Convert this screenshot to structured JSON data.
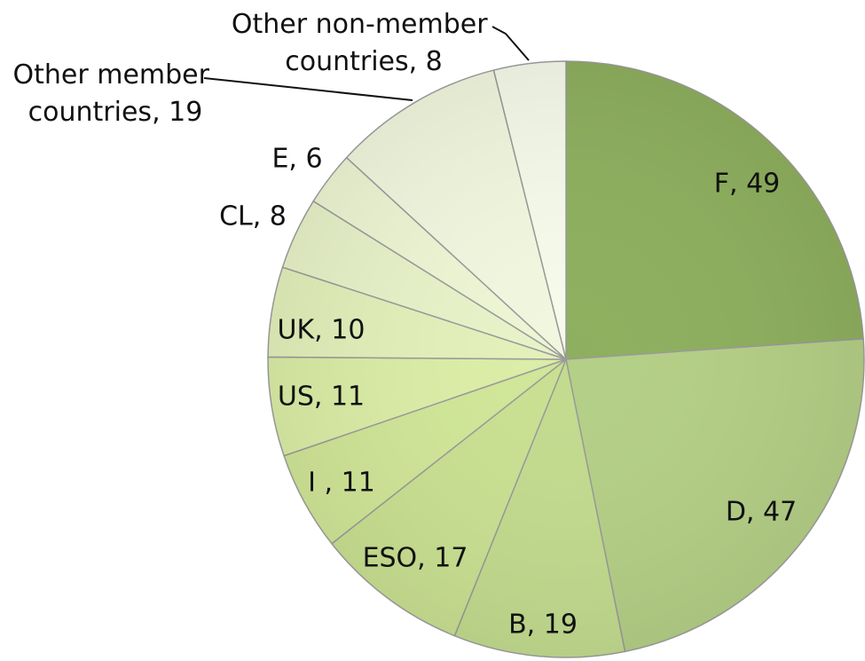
{
  "chart_data": {
    "type": "pie",
    "labels": [
      "F, 49",
      "D, 47",
      "B, 19",
      "ESO, 17",
      "I , 11",
      "US, 11",
      "UK, 10",
      "CL, 8",
      "E, 6",
      "Other member countries, 19",
      "Other non-member countries, 8"
    ],
    "values": [
      49,
      47,
      19,
      17,
      11,
      11,
      10,
      8,
      6,
      19,
      8
    ],
    "colors": [
      "#8eaf5e",
      "#b4cf86",
      "#c2db8e",
      "#c9e091",
      "#d0e697",
      "#dbeda6",
      "#e3f0ba",
      "#e8f2c8",
      "#edf5d3",
      "#f1f7de",
      "#f6faea"
    ]
  }
}
